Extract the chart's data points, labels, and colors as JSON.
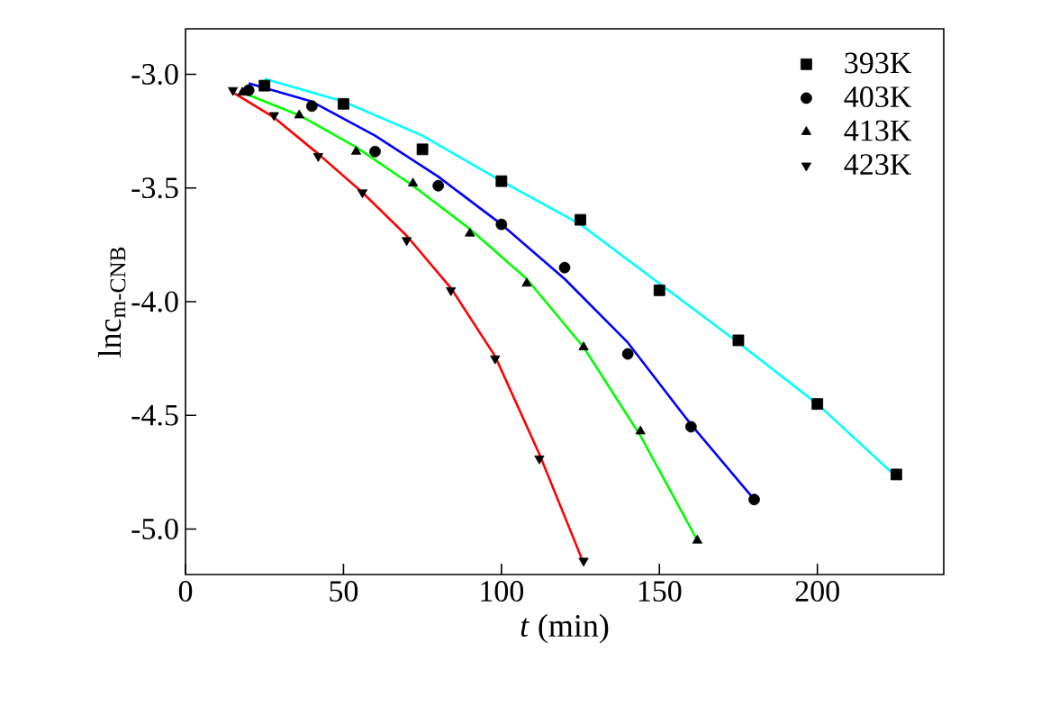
{
  "chart_data": {
    "type": "scatter",
    "xlabel": "*t* (min)",
    "ylabel": "lnc$_{m-CNB}$",
    "xlim": [
      0,
      240
    ],
    "xticks": [
      0,
      50,
      100,
      150,
      200
    ],
    "ylim": [
      -5.2,
      -2.8
    ],
    "yticks": [
      {
        "value": -3,
        "label": "-3.0"
      },
      -3.5,
      {
        "value": -4,
        "label": "-4.0"
      },
      -4.5,
      {
        "value": -5,
        "label": "-5.0"
      }
    ],
    "legend": "top right",
    "grid": false,
    "series": [
      {
        "name": "393K",
        "marker": "square",
        "color": "#000000",
        "x": [
          25,
          50,
          75,
          100,
          125,
          150,
          175,
          200,
          225
        ],
        "values": [
          -3.05,
          -3.13,
          -3.33,
          -3.47,
          -3.64,
          -3.95,
          -4.17,
          -4.45,
          -4.76
        ]
      },
      {
        "name": "403K",
        "marker": "circle",
        "color": "#000000",
        "x": [
          20,
          40,
          60,
          80,
          100,
          120,
          140,
          160,
          180
        ],
        "values": [
          -3.07,
          -3.14,
          -3.34,
          -3.49,
          -3.66,
          -3.85,
          -4.23,
          -4.55,
          -4.87
        ]
      },
      {
        "name": "413K",
        "marker": "triangle",
        "color": "#000000",
        "x": [
          18,
          36,
          54,
          72,
          90,
          108,
          126,
          144,
          162
        ],
        "values": [
          -3.08,
          -3.18,
          -3.34,
          -3.48,
          -3.7,
          -3.92,
          -4.2,
          -4.57,
          -5.05
        ]
      },
      {
        "name": "423K",
        "marker": "triangle-down",
        "color": "#000000",
        "x": [
          15,
          28,
          42,
          56,
          70,
          84,
          98,
          112,
          126
        ],
        "values": [
          -3.07,
          -3.18,
          -3.36,
          -3.52,
          -3.73,
          -3.95,
          -4.25,
          -4.69,
          -5.14
        ]
      },
      {
        "type": "line",
        "color": "#00ffff",
        "x": [
          25,
          50,
          75,
          100,
          125,
          150,
          175,
          200,
          225
        ],
        "values": [
          -3.02,
          -3.12,
          -3.27,
          -3.47,
          -3.66,
          -3.92,
          -4.18,
          -4.45,
          -4.77
        ]
      },
      {
        "type": "line",
        "color": "#0000ff",
        "x": [
          20,
          40,
          60,
          80,
          100,
          120,
          140,
          160,
          180
        ],
        "values": [
          -3.04,
          -3.12,
          -3.27,
          -3.45,
          -3.66,
          -3.9,
          -4.18,
          -4.54,
          -4.87
        ]
      },
      {
        "type": "line",
        "color": "#00ff00",
        "x": [
          18,
          36,
          54,
          72,
          90,
          108,
          126,
          144,
          162
        ],
        "values": [
          -3.08,
          -3.18,
          -3.32,
          -3.49,
          -3.68,
          -3.9,
          -4.2,
          -4.59,
          -5.05
        ]
      },
      {
        "type": "line",
        "color": "#ff0000",
        "x": [
          15,
          28,
          42,
          56,
          70,
          84,
          98,
          112,
          126
        ],
        "values": [
          -3.08,
          -3.19,
          -3.35,
          -3.52,
          -3.71,
          -3.94,
          -4.24,
          -4.67,
          -5.15
        ]
      }
    ]
  }
}
